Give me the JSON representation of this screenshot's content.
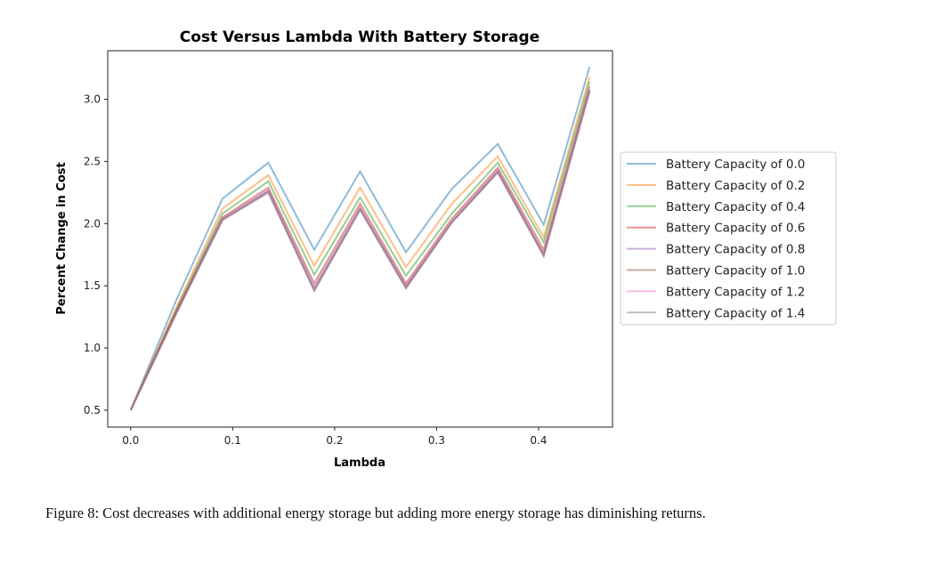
{
  "chart_data": {
    "type": "line",
    "title": "Cost Versus Lambda With Battery Storage",
    "xlabel": "Lambda",
    "ylabel": "Percent Change in Cost",
    "xlim": [
      -0.0225,
      0.4725
    ],
    "ylim": [
      0.364,
      3.39
    ],
    "xticks": [
      "0.0",
      "0.1",
      "0.2",
      "0.3",
      "0.4"
    ],
    "yticks": [
      "0.5",
      "1.0",
      "1.5",
      "2.0",
      "2.5",
      "3.0"
    ],
    "grid": false,
    "legend_position": "outside-right",
    "x": [
      0,
      0.045,
      0.09,
      0.135,
      0.18,
      0.225,
      0.27,
      0.315,
      0.36,
      0.405,
      0.45
    ],
    "series": [
      {
        "name": "Battery Capacity of 0.0",
        "color": "#1f77b4",
        "values": [
          0.5,
          1.39,
          2.2,
          2.49,
          1.79,
          2.42,
          1.77,
          2.28,
          2.64,
          1.99,
          3.26
        ]
      },
      {
        "name": "Battery Capacity of 0.2",
        "color": "#ff7f0e",
        "values": [
          0.5,
          1.33,
          2.12,
          2.39,
          1.66,
          2.29,
          1.65,
          2.16,
          2.54,
          1.89,
          3.18
        ]
      },
      {
        "name": "Battery Capacity of 0.4",
        "color": "#2ca02c",
        "values": [
          0.5,
          1.31,
          2.08,
          2.34,
          1.59,
          2.21,
          1.58,
          2.08,
          2.49,
          1.85,
          3.14
        ]
      },
      {
        "name": "Battery Capacity of 0.6",
        "color": "#d62728",
        "values": [
          0.5,
          1.3,
          2.05,
          2.29,
          1.52,
          2.16,
          1.52,
          2.04,
          2.45,
          1.79,
          3.1
        ]
      },
      {
        "name": "Battery Capacity of 0.8",
        "color": "#9467bd",
        "values": [
          0.5,
          1.29,
          2.04,
          2.27,
          1.49,
          2.13,
          1.5,
          2.02,
          2.43,
          1.76,
          3.08
        ]
      },
      {
        "name": "Battery Capacity of 1.0",
        "color": "#8c564b",
        "values": [
          0.5,
          1.29,
          2.03,
          2.26,
          1.47,
          2.12,
          1.49,
          2.01,
          2.42,
          1.75,
          3.07
        ]
      },
      {
        "name": "Battery Capacity of 1.2",
        "color": "#e377c2",
        "values": [
          0.5,
          1.28,
          2.03,
          2.25,
          1.46,
          2.11,
          1.48,
          2.01,
          2.41,
          1.74,
          3.06
        ]
      },
      {
        "name": "Battery Capacity of 1.4",
        "color": "#7f7f7f",
        "values": [
          0.5,
          1.28,
          2.03,
          2.25,
          1.46,
          2.11,
          1.48,
          2.01,
          2.41,
          1.74,
          3.06
        ]
      }
    ]
  },
  "caption": "Figure 8:  Cost decreases with additional energy storage but adding more energy storage has diminishing returns."
}
